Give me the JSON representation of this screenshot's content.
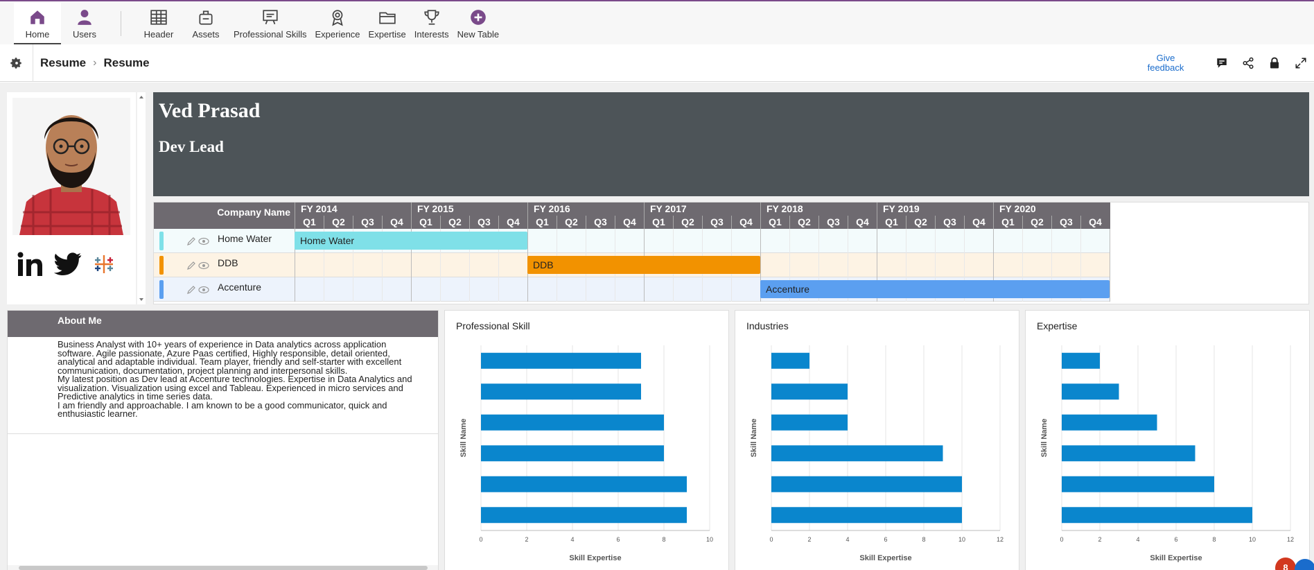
{
  "nav": {
    "items": [
      {
        "label": "Home",
        "icon": "home-icon"
      },
      {
        "label": "Users",
        "icon": "user-icon"
      },
      {
        "label": "Header",
        "icon": "table-icon"
      },
      {
        "label": "Assets",
        "icon": "assets-icon"
      },
      {
        "label": "Professional Skills",
        "icon": "presentation-icon"
      },
      {
        "label": "Experience",
        "icon": "award-icon"
      },
      {
        "label": "Expertise",
        "icon": "folder-icon"
      },
      {
        "label": "Interests",
        "icon": "trophy-icon"
      },
      {
        "label": "New Table",
        "icon": "plus-circle-icon"
      }
    ],
    "accent": "#7a4a8a"
  },
  "breadcrumb": {
    "root": "Resume",
    "current": "Resume"
  },
  "toolbar": {
    "feedback": "Give feedback"
  },
  "profile": {
    "name": "Ved Prasad",
    "role": "Dev Lead"
  },
  "gantt": {
    "company_header": "Company Name",
    "years": [
      "FY 2014",
      "FY 2015",
      "FY 2016",
      "FY 2017",
      "FY 2018",
      "FY 2019",
      "FY 2020"
    ],
    "quarters": [
      "Q1",
      "Q2",
      "Q3",
      "Q4"
    ],
    "rows": [
      {
        "company": "Home Water",
        "bar": "Home Water",
        "color": "#7fe0e8",
        "row_bg": "#f3fbfc",
        "start": "FY 2014 Q1",
        "end": "FY 2015 Q4"
      },
      {
        "company": "DDB",
        "bar": "DDB",
        "color": "#f29200",
        "row_bg": "#fdf3e4",
        "start": "FY 2016 Q1",
        "end": "FY 2017 Q4"
      },
      {
        "company": "Accenture",
        "bar": "Accenture",
        "color": "#5b9ff0",
        "row_bg": "#edf3fc",
        "start": "FY 2018 Q1",
        "end": "FY 2020 Q4"
      }
    ]
  },
  "about": {
    "title": "About Me",
    "lines": [
      "Business Analyst with 10+ years of experience in Data analytics across application",
      "software. Agile passionate, Azure Paas certified, Highly responsible, detail oriented,",
      "analytical and adaptable individual. Team player, friendly and self-starter with excellent",
      "communication, documentation, project planning and interpersonal skills.",
      "My latest position as Dev lead at Accenture technologies. Expertise in Data Analytics and",
      "visualization. Visualization using excel and Tableau. Experienced in micro services and",
      "Predictive analytics in time series data.",
      "I am friendly and approachable. I am known to be a good communicator, quick and",
      "enthusiastic learner."
    ]
  },
  "notifications": {
    "count": "8"
  },
  "chart_data": [
    {
      "type": "bar",
      "orientation": "horizontal",
      "title": "Professional Skill",
      "xlabel": "Skill Expertise",
      "ylabel": "Skill Name",
      "values": [
        7,
        7,
        8,
        8,
        9,
        9
      ],
      "xlim": [
        0,
        10
      ],
      "ticks": [
        "0",
        "2",
        "4",
        "6",
        "8",
        "10"
      ],
      "color": "#0a86cd"
    },
    {
      "type": "bar",
      "orientation": "horizontal",
      "title": "Industries",
      "xlabel": "Skill Expertise",
      "ylabel": "Skill Name",
      "values": [
        2,
        4,
        4,
        9,
        10,
        10
      ],
      "xlim": [
        0,
        12
      ],
      "ticks": [
        "0",
        "2",
        "4",
        "6",
        "8",
        "10",
        "12"
      ],
      "color": "#0a86cd"
    },
    {
      "type": "bar",
      "orientation": "horizontal",
      "title": "Expertise",
      "xlabel": "Skill Expertise",
      "ylabel": "Skill Name",
      "values": [
        2,
        3,
        5,
        7,
        8,
        10
      ],
      "xlim": [
        0,
        12
      ],
      "ticks": [
        "0",
        "2",
        "4",
        "6",
        "8",
        "10",
        "12"
      ],
      "color": "#0a86cd"
    }
  ]
}
